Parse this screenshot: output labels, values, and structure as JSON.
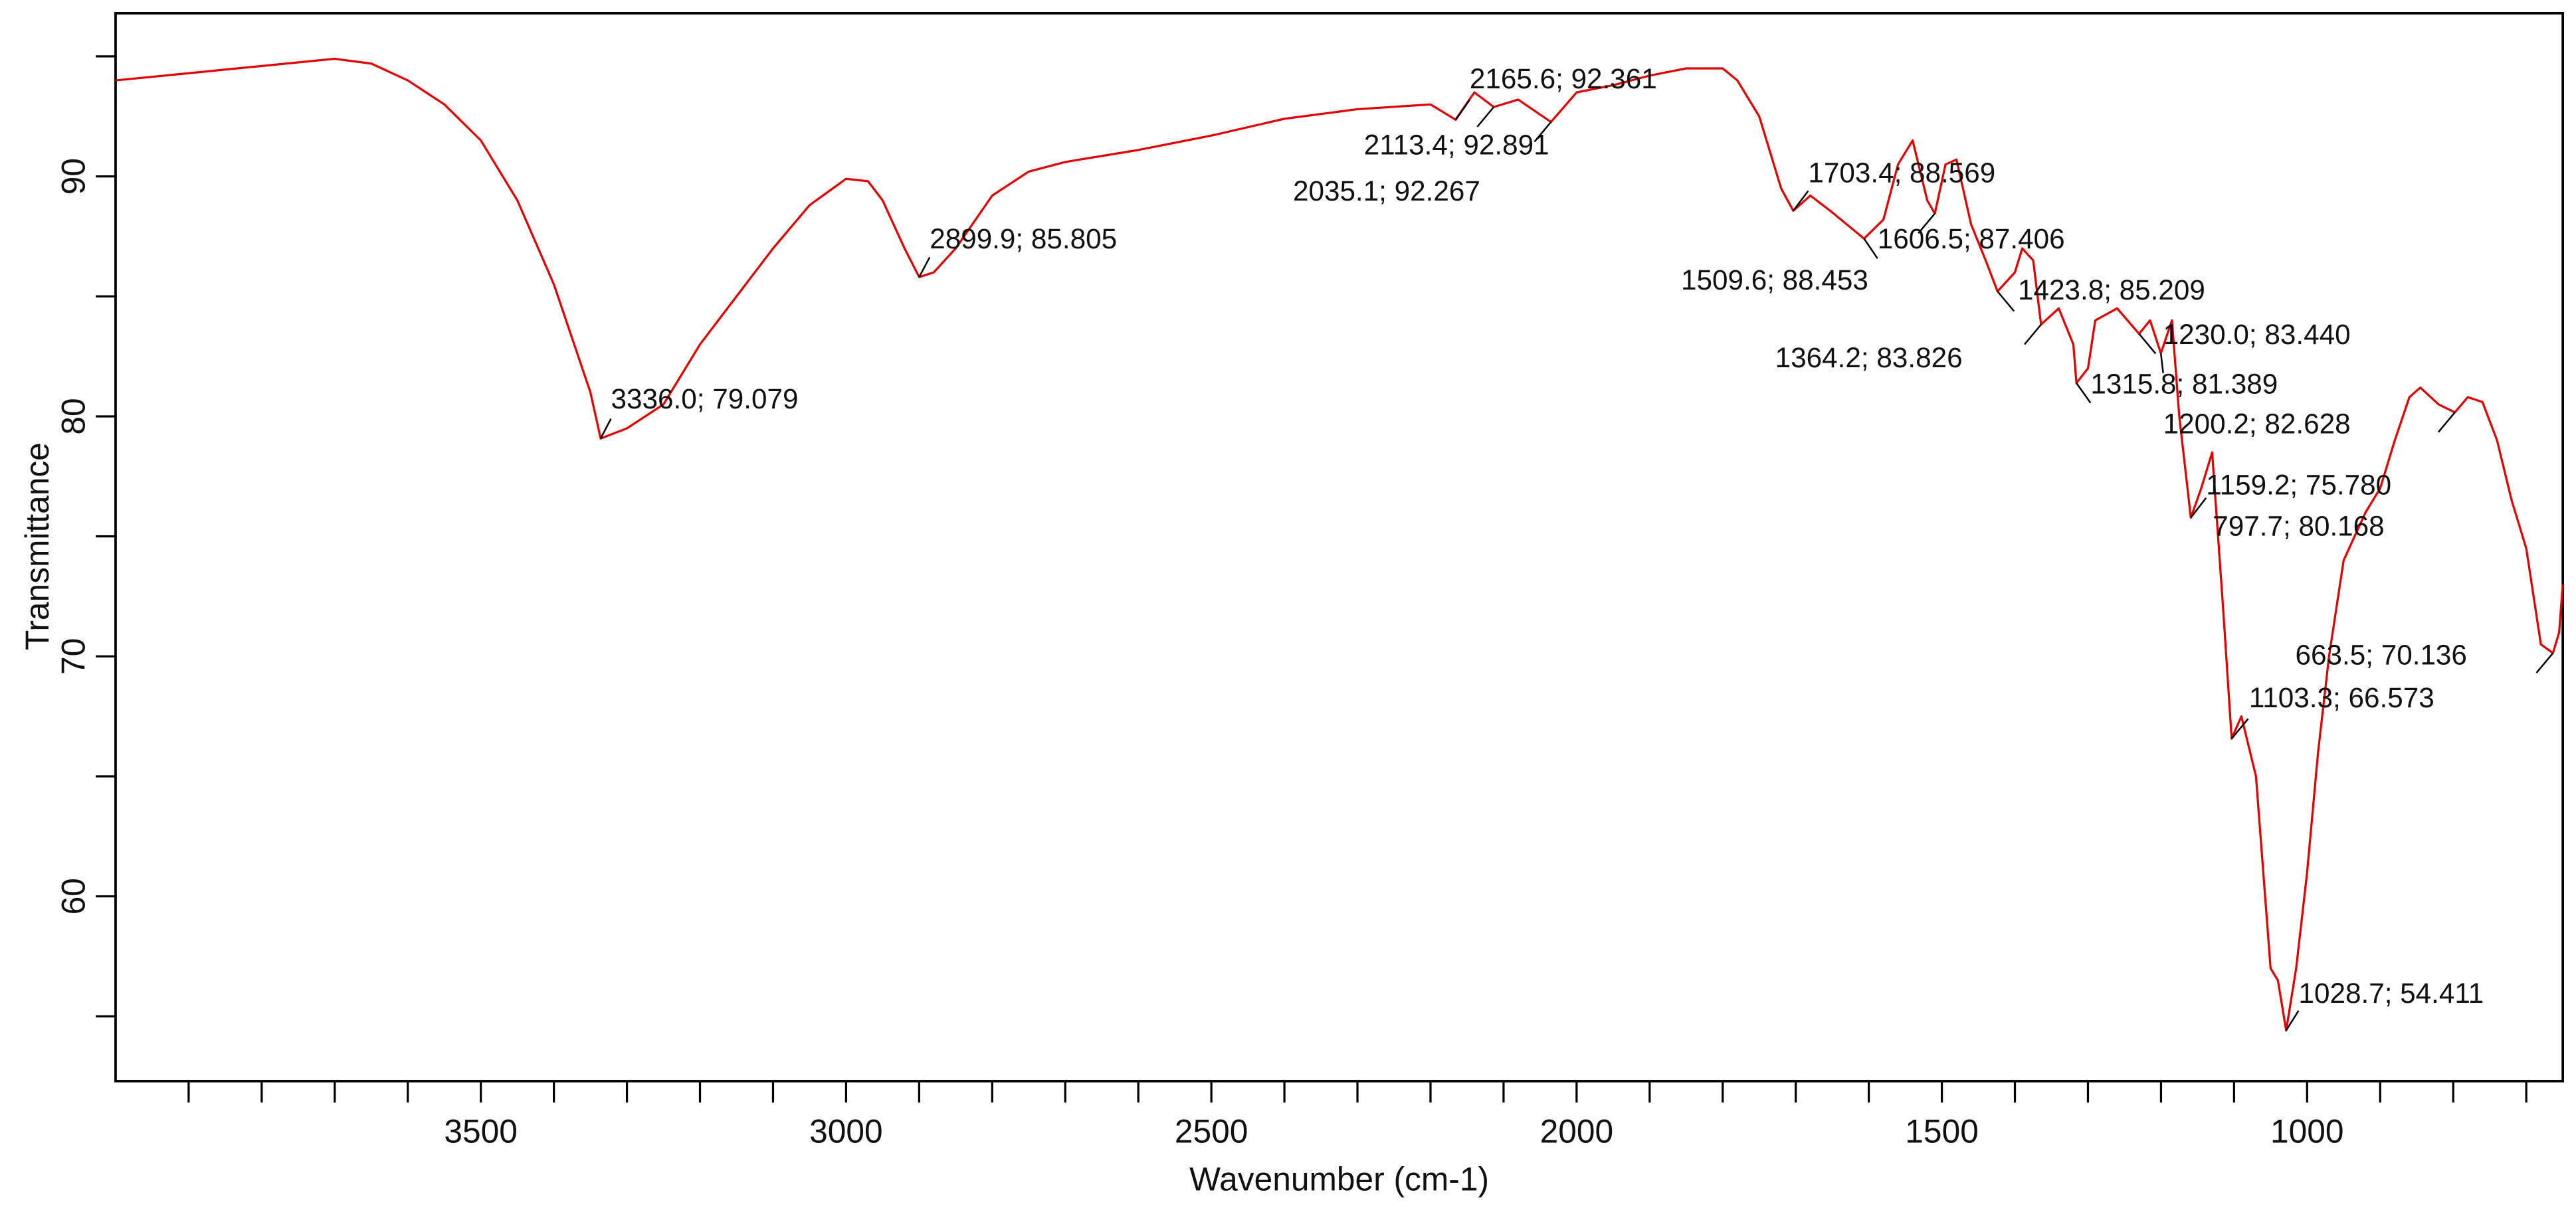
{
  "chart_data": {
    "type": "line",
    "xlabel": "Wavenumber (cm-1)",
    "ylabel": "Transmittance",
    "color": "#e00000",
    "x_reversed": true,
    "xlim": [
      4000,
      650
    ],
    "ylim": [
      52.3,
      96.8
    ],
    "xticks": [
      3500,
      3000,
      2500,
      2000,
      1500,
      1000
    ],
    "xminorticks": [
      3900,
      3800,
      3700,
      3600,
      3400,
      3300,
      3200,
      3100,
      2900,
      2800,
      2700,
      2600,
      2400,
      2300,
      2200,
      2100,
      1900,
      1800,
      1700,
      1600,
      1400,
      1300,
      1200,
      1100,
      900,
      800,
      700
    ],
    "yticks": [
      60,
      70,
      80,
      90
    ],
    "yminorticks": [
      55,
      65,
      75,
      85,
      95
    ],
    "x": [
      4000,
      3900,
      3800,
      3700,
      3650,
      3600,
      3550,
      3500,
      3450,
      3400,
      3350,
      3336.0,
      3300,
      3250,
      3200,
      3150,
      3100,
      3050,
      3000,
      2970,
      2950,
      2920,
      2899.9,
      2880,
      2850,
      2800,
      2750,
      2700,
      2600,
      2500,
      2400,
      2300,
      2200,
      2165.6,
      2140,
      2113.4,
      2080,
      2035.1,
      2000,
      1950,
      1900,
      1850,
      1800,
      1780,
      1750,
      1720,
      1703.4,
      1680,
      1650,
      1606.5,
      1580,
      1560,
      1540,
      1520,
      1509.6,
      1495,
      1480,
      1460,
      1440,
      1423.8,
      1400,
      1390,
      1375,
      1364.2,
      1340,
      1320,
      1315.8,
      1300,
      1290,
      1260,
      1230.0,
      1215,
      1200.2,
      1185,
      1175,
      1159.2,
      1145,
      1130,
      1115,
      1103.3,
      1090,
      1070,
      1050,
      1040,
      1028.7,
      1015,
      1000,
      985,
      970,
      950,
      920,
      900,
      880,
      860,
      845,
      820,
      797.7,
      780,
      760,
      740,
      720,
      700,
      690,
      680,
      663.5,
      655,
      650
    ],
    "values": [
      94.0,
      94.3,
      94.6,
      94.9,
      94.7,
      94.0,
      93.0,
      91.5,
      89.0,
      85.5,
      81.0,
      79.079,
      79.5,
      80.5,
      83.0,
      85.0,
      87.0,
      88.8,
      89.9,
      89.8,
      89.0,
      87.0,
      85.805,
      86.0,
      87.0,
      89.2,
      90.2,
      90.6,
      91.1,
      91.7,
      92.4,
      92.8,
      93.0,
      92.361,
      93.5,
      92.891,
      93.2,
      92.267,
      93.5,
      93.8,
      94.2,
      94.5,
      94.5,
      94.0,
      92.5,
      89.5,
      88.569,
      89.2,
      88.5,
      87.406,
      88.2,
      90.5,
      91.5,
      89.0,
      88.453,
      90.5,
      90.7,
      88.0,
      86.5,
      85.209,
      86.0,
      87.0,
      86.5,
      83.826,
      84.5,
      83.0,
      81.389,
      82.0,
      84.0,
      84.5,
      83.44,
      84.0,
      82.628,
      84.0,
      80.0,
      75.78,
      77.0,
      78.5,
      72.0,
      66.573,
      67.5,
      65.0,
      57.0,
      56.5,
      54.411,
      57.0,
      61.0,
      66.0,
      70.0,
      74.0,
      76.0,
      77.0,
      79.0,
      80.8,
      81.2,
      80.5,
      80.168,
      80.8,
      80.6,
      79.0,
      76.5,
      74.5,
      72.5,
      70.5,
      70.136,
      71.0,
      73.0
    ],
    "annotations": [
      {
        "x": 3336.0,
        "y": 79.079,
        "label": "3336.0; 79.079"
      },
      {
        "x": 2899.9,
        "y": 85.805,
        "label": "2899.9; 85.805"
      },
      {
        "x": 2165.6,
        "y": 92.361,
        "label": "2165.6; 92.361"
      },
      {
        "x": 2113.4,
        "y": 92.891,
        "label": "2113.4; 92.891"
      },
      {
        "x": 2035.1,
        "y": 92.267,
        "label": "2035.1; 92.267"
      },
      {
        "x": 1703.4,
        "y": 88.569,
        "label": "1703.4; 88.569"
      },
      {
        "x": 1606.5,
        "y": 87.406,
        "label": "1606.5; 87.406"
      },
      {
        "x": 1509.6,
        "y": 88.453,
        "label": "1509.6; 88.453"
      },
      {
        "x": 1423.8,
        "y": 85.209,
        "label": "1423.8; 85.209"
      },
      {
        "x": 1364.2,
        "y": 83.826,
        "label": "1364.2; 83.826"
      },
      {
        "x": 1230.0,
        "y": 83.44,
        "label": "1230.0; 83.440"
      },
      {
        "x": 1315.8,
        "y": 81.389,
        "label": "1315.8; 81.389"
      },
      {
        "x": 1200.2,
        "y": 82.628,
        "label": "1200.2; 82.628"
      },
      {
        "x": 1159.2,
        "y": 75.78,
        "label": "1159.2; 75.780"
      },
      {
        "x": 797.7,
        "y": 80.168,
        "label": "797.7; 80.168"
      },
      {
        "x": 663.5,
        "y": 70.136,
        "label": "663.5; 70.136"
      },
      {
        "x": 1103.3,
        "y": 66.573,
        "label": "1103.3; 66.573"
      },
      {
        "x": 1028.7,
        "y": 54.411,
        "label": "1028.7; 54.411"
      }
    ]
  }
}
